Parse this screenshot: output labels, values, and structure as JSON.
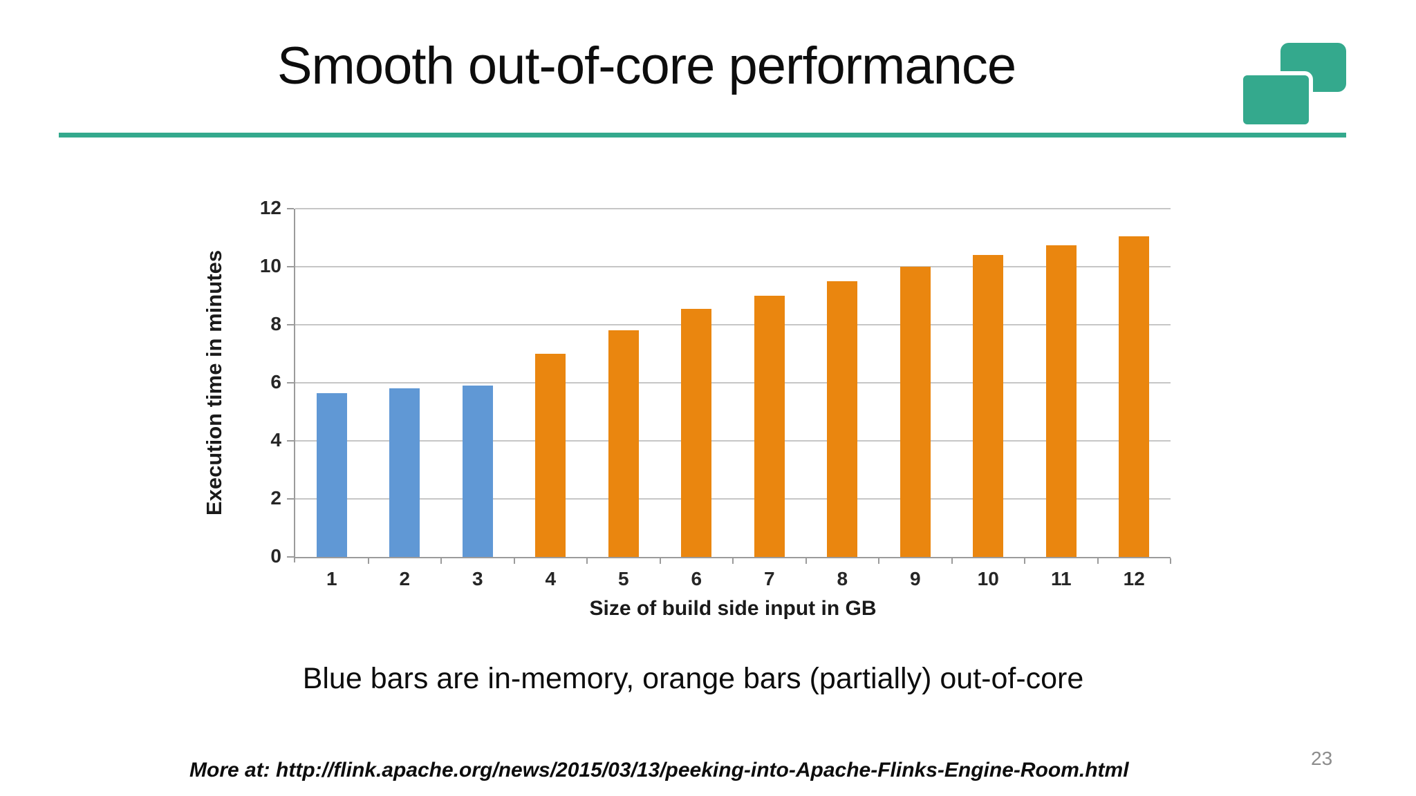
{
  "slide": {
    "title": "Smooth out-of-core performance",
    "caption": "Blue bars are in-memory, orange bars (partially) out-of-core",
    "footer": "More at: http://flink.apache.org/news/2015/03/13/peeking-into-Apache-Flinks-Engine-Room.html",
    "page_number": "23",
    "accent_color": "#34a98d"
  },
  "chart_data": {
    "type": "bar",
    "title": "",
    "xlabel": "Size of build side input in GB",
    "ylabel": "Execution time in minutes",
    "categories": [
      "1",
      "2",
      "3",
      "4",
      "5",
      "6",
      "7",
      "8",
      "9",
      "10",
      "11",
      "12"
    ],
    "values": [
      5.65,
      5.8,
      5.9,
      7.0,
      7.8,
      8.55,
      9.0,
      9.5,
      10.0,
      10.4,
      10.75,
      11.05
    ],
    "colors": [
      "#6098d5",
      "#6098d5",
      "#6098d5",
      "#ea860f",
      "#ea860f",
      "#ea860f",
      "#ea860f",
      "#ea860f",
      "#ea860f",
      "#ea860f",
      "#ea860f",
      "#ea860f"
    ],
    "series_meaning": {
      "blue": "in-memory",
      "orange": "(partially) out-of-core"
    },
    "ylim": [
      0,
      12
    ],
    "yticks": [
      0,
      2,
      4,
      6,
      8,
      10,
      12
    ],
    "grid": true,
    "legend": "none",
    "gridline_color": "#c6c6c6",
    "axis_color": "#9b9b9b"
  }
}
